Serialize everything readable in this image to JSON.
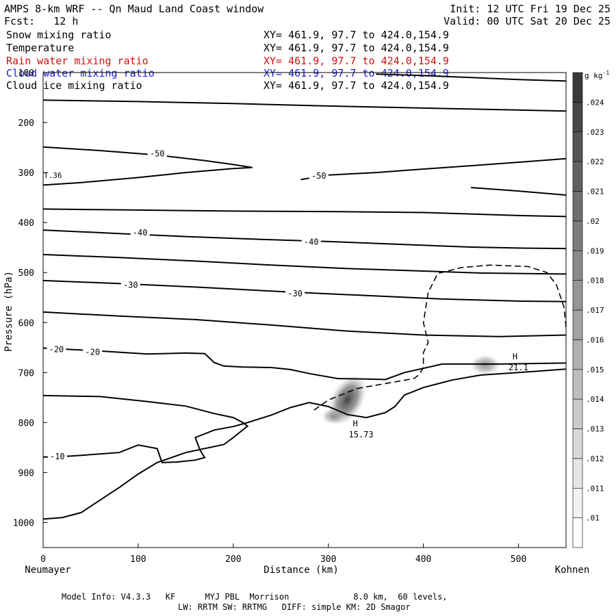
{
  "header": {
    "title": "AMPS 8-km WRF -- Qn Maud Land Coast window",
    "forecast": "Fcst:   12 h",
    "init": "Init: 12 UTC Fri 19 Dec 25",
    "valid": "Valid: 00 UTC Sat 20 Dec 25"
  },
  "fields": [
    {
      "name": "Snow mixing ratio",
      "xy": "XY= 461.9, 97.7 to 424.0,154.9",
      "color": "#000000"
    },
    {
      "name": "Temperature",
      "xy": "XY= 461.9, 97.7 to 424.0,154.9",
      "color": "#000000"
    },
    {
      "name": "Rain water mixing ratio",
      "xy": "XY= 461.9, 97.7 to 424.0,154.9",
      "color": "#d01010"
    },
    {
      "name": "Cloud water mixing ratio",
      "xy": "XY= 461.9, 97.7 to 424.0,154.9",
      "color": "#1a1acc"
    },
    {
      "name": "Cloud ice mixing ratio",
      "xy": "XY= 461.9, 97.7 to 424.0,154.9",
      "color": "#000000"
    }
  ],
  "footer": {
    "line1": "Model Info: V4.3.3   KF      MYJ PBL  Morrison             8.0 km,  60 levels,",
    "line2": "LW: RRTM SW: RRTMG   DIFF: simple KM: 2D Smagor"
  },
  "chart_data": {
    "type": "contour",
    "xlabel": "Distance (km)",
    "ylabel": "Pressure (hPa)",
    "xlim": [
      0,
      550
    ],
    "ylim": [
      1050,
      100
    ],
    "x_ticks": [
      0,
      100,
      200,
      300,
      400,
      500
    ],
    "y_ticks": [
      100,
      200,
      300,
      400,
      500,
      600,
      700,
      800,
      900,
      1000
    ],
    "x_start_label": "Neumayer",
    "x_end_label": "Kohnen",
    "colorbar": {
      "unit": "g kg",
      "unit_exp": "-1",
      "levels": [
        ".01",
        ".011",
        ".012",
        ".013",
        ".014",
        ".015",
        ".016",
        ".017",
        ".018",
        ".019",
        ".02",
        ".021",
        ".022",
        ".023",
        ".024"
      ]
    },
    "temperature_contours": [
      {
        "value": -50,
        "label": "-50",
        "points": [
          [
            0,
            249
          ],
          [
            60,
            256
          ],
          [
            120,
            265
          ],
          [
            170,
            276
          ],
          [
            200,
            284
          ],
          [
            220,
            290
          ],
          [
            200,
            292
          ],
          [
            150,
            300
          ],
          [
            100,
            310
          ],
          [
            40,
            320
          ],
          [
            0,
            325
          ]
        ]
      },
      {
        "value": -50,
        "label": "-50",
        "points": [
          [
            271,
            314
          ],
          [
            300,
            305
          ],
          [
            350,
            300
          ],
          [
            400,
            293
          ],
          [
            460,
            285
          ],
          [
            510,
            278
          ],
          [
            550,
            272
          ]
        ]
      },
      {
        "value": -55,
        "label": "",
        "points": [
          [
            0,
            155
          ],
          [
            100,
            158
          ],
          [
            200,
            162
          ],
          [
            300,
            167
          ],
          [
            400,
            171
          ],
          [
            500,
            175
          ],
          [
            550,
            177
          ]
        ]
      },
      {
        "value": -60,
        "label": "",
        "points": [
          [
            350,
            103
          ],
          [
            400,
            106
          ],
          [
            450,
            110
          ],
          [
            500,
            114
          ],
          [
            550,
            117
          ]
        ]
      },
      {
        "value": -45,
        "label": "",
        "points": [
          [
            0,
            373
          ],
          [
            100,
            375
          ],
          [
            200,
            377
          ],
          [
            300,
            378
          ],
          [
            400,
            380
          ],
          [
            500,
            386
          ],
          [
            550,
            388
          ]
        ]
      },
      {
        "value": -45,
        "label": "",
        "points": [
          [
            450,
            330
          ],
          [
            500,
            337
          ],
          [
            550,
            345
          ]
        ]
      },
      {
        "value": -40,
        "label": "-40",
        "points": [
          [
            0,
            415
          ],
          [
            80,
            422
          ],
          [
            150,
            428
          ],
          [
            220,
            433
          ],
          [
            300,
            438
          ],
          [
            380,
            444
          ],
          [
            450,
            449
          ],
          [
            500,
            451
          ],
          [
            550,
            452
          ]
        ]
      },
      {
        "value": -35,
        "label": "",
        "points": [
          [
            0,
            464
          ],
          [
            80,
            470
          ],
          [
            160,
            477
          ],
          [
            240,
            485
          ],
          [
            320,
            492
          ],
          [
            400,
            497
          ],
          [
            460,
            501
          ],
          [
            550,
            503
          ]
        ]
      },
      {
        "value": -30,
        "label": "-30",
        "points": [
          [
            0,
            516
          ],
          [
            80,
            522
          ],
          [
            160,
            529
          ],
          [
            250,
            538
          ],
          [
            340,
            546
          ],
          [
            420,
            553
          ],
          [
            500,
            557
          ],
          [
            550,
            558
          ]
        ]
      },
      {
        "value": -25,
        "label": "",
        "points": [
          [
            0,
            579
          ],
          [
            80,
            587
          ],
          [
            160,
            594
          ],
          [
            240,
            605
          ],
          [
            320,
            617
          ],
          [
            400,
            625
          ],
          [
            480,
            628
          ],
          [
            550,
            625
          ]
        ]
      },
      {
        "value": -20,
        "label": "-20",
        "points": [
          [
            0,
            651
          ],
          [
            60,
            657
          ],
          [
            110,
            663
          ],
          [
            150,
            661
          ],
          [
            170,
            662
          ],
          [
            180,
            680
          ],
          [
            190,
            687
          ],
          [
            210,
            689
          ],
          [
            240,
            690
          ],
          [
            260,
            694
          ],
          [
            280,
            702
          ],
          [
            310,
            712
          ],
          [
            340,
            713
          ],
          [
            360,
            714
          ],
          [
            380,
            700
          ],
          [
            420,
            683
          ],
          [
            480,
            683
          ],
          [
            550,
            681
          ]
        ]
      },
      {
        "value": -15,
        "label": "",
        "points": [
          [
            0,
            746
          ],
          [
            60,
            748
          ],
          [
            110,
            758
          ],
          [
            150,
            767
          ],
          [
            180,
            782
          ],
          [
            200,
            790
          ],
          [
            210,
            800
          ],
          [
            215,
            807
          ],
          [
            200,
            830
          ],
          [
            190,
            844
          ],
          [
            150,
            860
          ],
          [
            120,
            880
          ],
          [
            100,
            903
          ],
          [
            80,
            930
          ],
          [
            60,
            955
          ],
          [
            40,
            980
          ],
          [
            20,
            990
          ],
          [
            0,
            993
          ]
        ]
      },
      {
        "value": -10,
        "label": "-10",
        "points": [
          [
            0,
            869
          ],
          [
            30,
            867
          ],
          [
            80,
            860
          ],
          [
            100,
            845
          ],
          [
            120,
            852
          ],
          [
            125,
            880
          ],
          [
            140,
            879
          ],
          [
            160,
            875
          ],
          [
            170,
            870
          ],
          [
            165,
            855
          ],
          [
            160,
            830
          ],
          [
            180,
            815
          ],
          [
            200,
            808
          ],
          [
            215,
            800
          ],
          [
            240,
            785
          ],
          [
            260,
            770
          ],
          [
            280,
            760
          ],
          [
            300,
            768
          ],
          [
            320,
            784
          ],
          [
            340,
            790
          ],
          [
            360,
            780
          ],
          [
            370,
            768
          ],
          [
            380,
            745
          ],
          [
            400,
            730
          ],
          [
            430,
            715
          ],
          [
            460,
            705
          ],
          [
            500,
            700
          ],
          [
            550,
            693
          ]
        ]
      }
    ],
    "cloud_water_contours": [
      {
        "value": 0.01,
        "dashed": true,
        "points": [
          [
            285,
            775
          ],
          [
            300,
            755
          ],
          [
            330,
            732
          ],
          [
            360,
            722
          ],
          [
            390,
            712
          ],
          [
            395,
            705
          ],
          [
            400,
            690
          ],
          [
            400,
            660
          ],
          [
            405,
            640
          ],
          [
            400,
            600
          ],
          [
            405,
            540
          ],
          [
            415,
            502
          ],
          [
            440,
            490
          ],
          [
            470,
            485
          ],
          [
            510,
            488
          ],
          [
            530,
            500
          ],
          [
            540,
            525
          ],
          [
            548,
            570
          ],
          [
            550,
            610
          ]
        ]
      }
    ],
    "shaded_maxima": [
      {
        "label": "H",
        "value": "15.73",
        "x": 320,
        "p": 760,
        "max": 0.024
      },
      {
        "label": "H",
        "value": "21.1",
        "x": 465,
        "p": 690,
        "max": 0.018
      }
    ],
    "other_labels": [
      {
        "text": "T.36",
        "x": 0,
        "p": 305
      }
    ]
  }
}
